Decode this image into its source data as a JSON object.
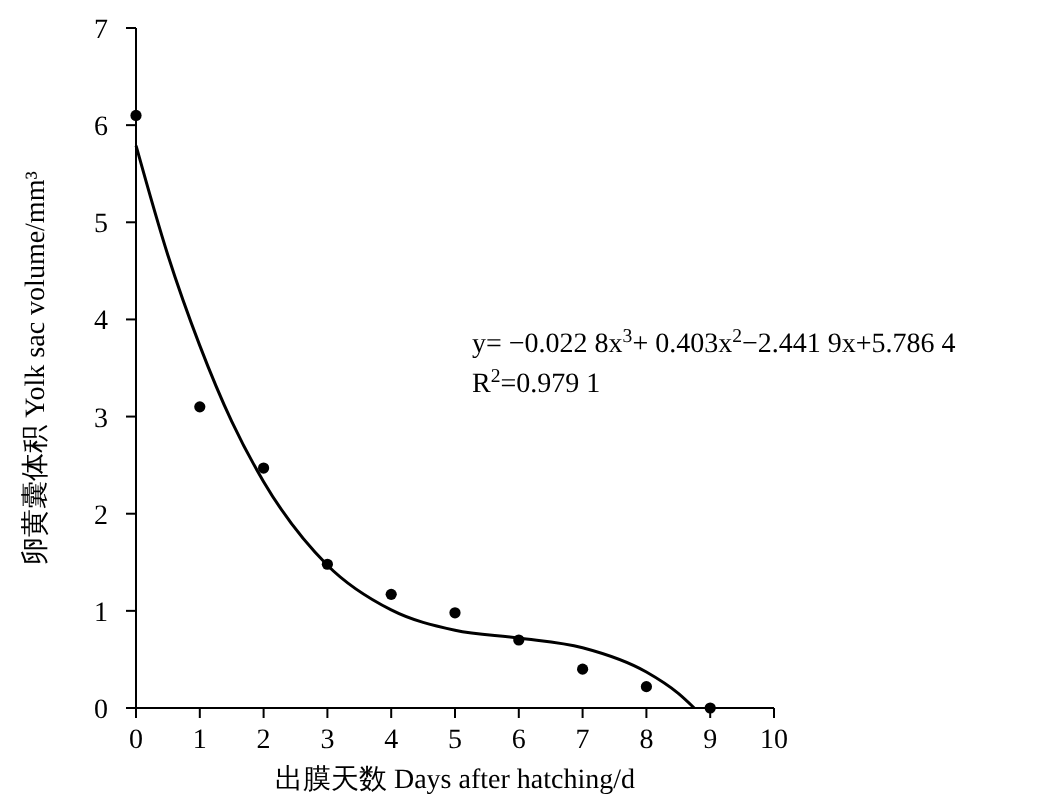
{
  "chart_data": {
    "type": "scatter",
    "xlabel": "出膜天数 Days after hatching/d",
    "ylabel": "卵黄囊体积 Yolk sac volume/mm³",
    "xlim": [
      0,
      10
    ],
    "xticks": [
      0,
      1,
      2,
      3,
      4,
      5,
      6,
      7,
      8,
      9,
      10
    ],
    "ylim": [
      0,
      7
    ],
    "yticks": [
      0,
      1,
      2,
      3,
      4,
      5,
      6,
      7
    ],
    "grid": false,
    "x": [
      0,
      1,
      2,
      3,
      4,
      5,
      6,
      7,
      8,
      9
    ],
    "series": [
      {
        "color": "#000000",
        "marker": "circle",
        "values": [
          6.1,
          3.1,
          2.47,
          1.48,
          1.17,
          0.98,
          0.7,
          0.4,
          0.22,
          0.0
        ]
      },
      {
        "type": "line",
        "color": "#000000",
        "line_style": "solid",
        "marker": "none",
        "x": [
          0,
          0.5,
          1,
          1.5,
          2,
          3,
          4,
          5,
          6,
          7,
          8,
          8.5,
          8.75
        ],
        "values": [
          5.79,
          4.66,
          3.73,
          2.95,
          2.33,
          1.47,
          1.01,
          0.8,
          0.72,
          0.62,
          0.37,
          0.15,
          0.0
        ]
      }
    ],
    "annotations": [
      "y= −0.022 8x$^{3}$+ 0.403x$^{2}$−2.441 9x+5.786 4",
      "R$^{2}$=0.979 1"
    ]
  }
}
